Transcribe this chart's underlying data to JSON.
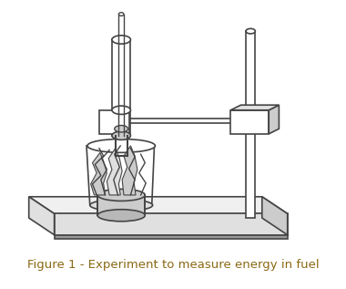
{
  "title": "Figure 1 - Experiment to measure energy in fuel",
  "title_color": "#8B6914",
  "title_fontsize": 9.5,
  "bg_color": "#ffffff",
  "line_color": "#444444",
  "gray_fill": "#b8b8b8",
  "mid_gray": "#cccccc",
  "light_gray": "#e0e0e0",
  "dark_gray": "#999999"
}
